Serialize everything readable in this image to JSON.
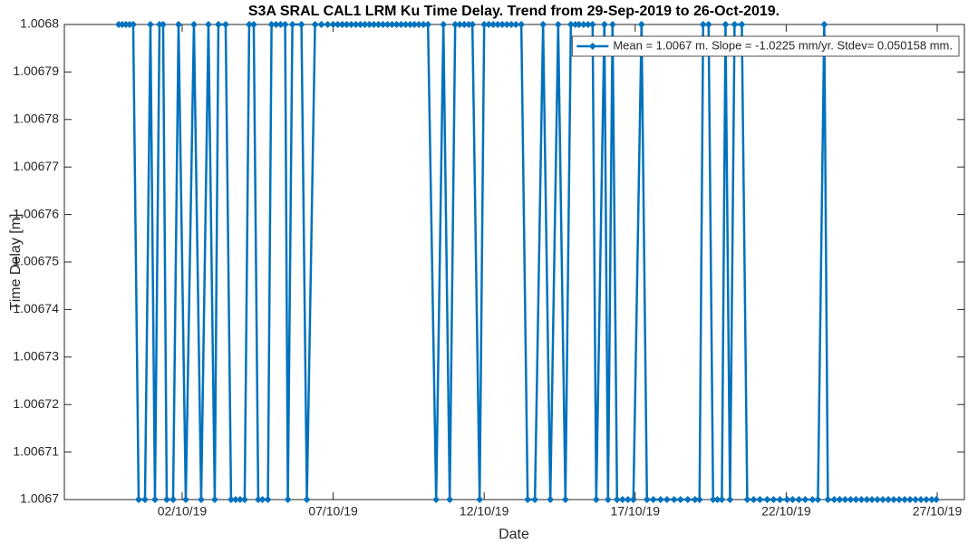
{
  "chart_data": {
    "type": "line",
    "title": "S3A SRAL CAL1 LRM Ku Time Delay. Trend from 29-Sep-2019 to 26-Oct-2019.",
    "x_label": "Date",
    "y_label": "Time Delay [m]",
    "x": [
      -0.1,
      0.02,
      0.14,
      0.26,
      0.38,
      0.56,
      0.77,
      0.95,
      1.1,
      1.25,
      1.37,
      1.49,
      1.7,
      1.88,
      2.12,
      2.39,
      2.63,
      2.87,
      3.08,
      3.2,
      3.44,
      3.62,
      3.77,
      3.92,
      4.07,
      4.22,
      4.37,
      4.52,
      4.66,
      4.84,
      4.96,
      5.11,
      5.26,
      5.41,
      5.5,
      5.65,
      5.95,
      6.13,
      6.4,
      6.61,
      6.82,
      7.0,
      7.15,
      7.3,
      7.45,
      7.6,
      7.75,
      7.9,
      8.05,
      8.2,
      8.35,
      8.5,
      8.65,
      8.8,
      8.95,
      9.1,
      9.25,
      9.4,
      9.55,
      9.69,
      9.84,
      9.99,
      10.14,
      10.41,
      10.65,
      10.86,
      11.04,
      11.19,
      11.34,
      11.49,
      11.61,
      11.85,
      12.0,
      12.15,
      12.3,
      12.45,
      12.6,
      12.75,
      12.9,
      13.05,
      13.23,
      13.44,
      13.68,
      13.95,
      14.19,
      14.45,
      14.69,
      14.87,
      15.02,
      15.14,
      15.29,
      15.44,
      15.59,
      15.71,
      15.98,
      16.1,
      16.25,
      16.4,
      16.58,
      16.76,
      16.94,
      17.21,
      17.39,
      17.6,
      17.84,
      18.05,
      18.29,
      18.5,
      18.74,
      18.98,
      19.13,
      19.25,
      19.43,
      19.58,
      19.72,
      19.87,
      19.99,
      20.14,
      20.29,
      20.53,
      20.71,
      20.92,
      21.13,
      21.37,
      21.58,
      21.79,
      22.03,
      22.21,
      22.42,
      22.63,
      22.87,
      23.05,
      23.26,
      23.38,
      23.59,
      23.77,
      23.95,
      24.13,
      24.31,
      24.49,
      24.67,
      24.84,
      25.02,
      25.2,
      25.38,
      25.56,
      25.74,
      25.92,
      26.1,
      26.28,
      26.46,
      26.64,
      26.82,
      26.97
    ],
    "series": [
      {
        "name": "Mean = 1.0067 m. Slope = -1.0225 mm/yr. Stdev= 0.050158 mm.",
        "color": "#0072bd",
        "values": [
          1.0068,
          1.0068,
          1.0068,
          1.0068,
          1.0068,
          1.0067,
          1.0067,
          1.0068,
          1.0067,
          1.0068,
          1.0068,
          1.0067,
          1.0067,
          1.0068,
          1.0067,
          1.0068,
          1.0067,
          1.0068,
          1.0067,
          1.0068,
          1.0068,
          1.0067,
          1.0067,
          1.0067,
          1.0067,
          1.0068,
          1.0068,
          1.0067,
          1.0067,
          1.0067,
          1.0068,
          1.0068,
          1.0068,
          1.0068,
          1.0067,
          1.0068,
          1.0068,
          1.0067,
          1.0068,
          1.0068,
          1.0068,
          1.0068,
          1.0068,
          1.0068,
          1.0068,
          1.0068,
          1.0068,
          1.0068,
          1.0068,
          1.0068,
          1.0068,
          1.0068,
          1.0068,
          1.0068,
          1.0068,
          1.0068,
          1.0068,
          1.0068,
          1.0068,
          1.0068,
          1.0068,
          1.0068,
          1.0068,
          1.0067,
          1.0068,
          1.0067,
          1.0068,
          1.0068,
          1.0068,
          1.0068,
          1.0068,
          1.0067,
          1.0068,
          1.0068,
          1.0068,
          1.0068,
          1.0068,
          1.0068,
          1.0068,
          1.0068,
          1.0068,
          1.0067,
          1.0067,
          1.0068,
          1.0067,
          1.0068,
          1.0067,
          1.0068,
          1.0068,
          1.0068,
          1.0068,
          1.0068,
          1.0068,
          1.0067,
          1.0068,
          1.0067,
          1.0068,
          1.0067,
          1.0067,
          1.0067,
          1.0067,
          1.0068,
          1.0067,
          1.0067,
          1.0067,
          1.0067,
          1.0067,
          1.0067,
          1.0067,
          1.0067,
          1.0067,
          1.0068,
          1.0068,
          1.0067,
          1.0067,
          1.0067,
          1.0068,
          1.0067,
          1.0068,
          1.0068,
          1.0067,
          1.0067,
          1.0067,
          1.0067,
          1.0067,
          1.0067,
          1.0067,
          1.0067,
          1.0067,
          1.0067,
          1.0067,
          1.0067,
          1.0068,
          1.0067,
          1.0067,
          1.0067,
          1.0067,
          1.0067,
          1.0067,
          1.0067,
          1.0067,
          1.0067,
          1.0067,
          1.0067,
          1.0067,
          1.0067,
          1.0067,
          1.0067,
          1.0067,
          1.0067,
          1.0067,
          1.0067,
          1.0067,
          1.0067
        ]
      }
    ],
    "xlim": [
      -1.9,
      27.9
    ],
    "xticks": [
      {
        "value": 2,
        "label": "02/10/19"
      },
      {
        "value": 7,
        "label": "07/10/19"
      },
      {
        "value": 12,
        "label": "12/10/19"
      },
      {
        "value": 17,
        "label": "17/10/19"
      },
      {
        "value": 22,
        "label": "22/10/19"
      },
      {
        "value": 27,
        "label": "27/10/19"
      }
    ],
    "ylim": [
      1.0067,
      1.0068
    ],
    "yticks": [
      1.0067,
      1.00671,
      1.00672,
      1.00673,
      1.00674,
      1.00675,
      1.00676,
      1.00677,
      1.00678,
      1.00679,
      1.0068
    ],
    "grid": false,
    "legend": "upper right"
  }
}
